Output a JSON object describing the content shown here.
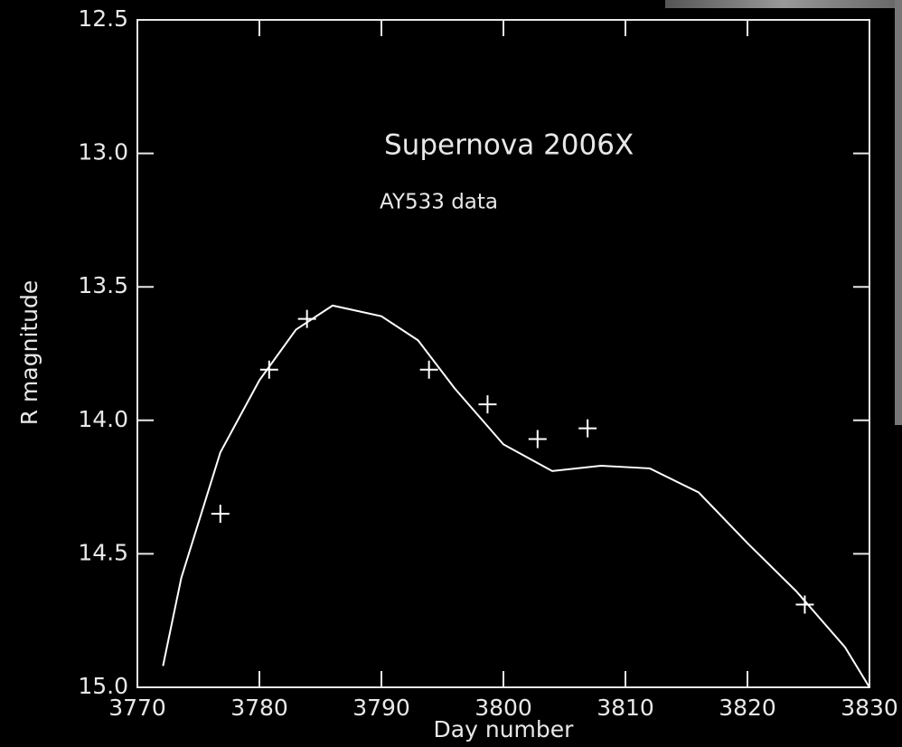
{
  "chart_data": {
    "type": "scatter",
    "title": "Supernova 2006X",
    "subtitle": "AY533 data",
    "x_label": "Day number",
    "y_label": "R magnitude",
    "color": "#ffffff",
    "x": [
      3776.8,
      3780.8,
      3783.9,
      3793.9,
      3798.7,
      3802.8,
      3806.9,
      3824.7
    ],
    "values": [
      14.35,
      13.81,
      13.62,
      13.81,
      13.94,
      14.07,
      14.03,
      14.69
    ],
    "fit": {
      "x": [
        3772.1,
        3773.6,
        3776.8,
        3780,
        3783,
        3786,
        3790,
        3793,
        3796,
        3800,
        3804,
        3808,
        3812,
        3816,
        3820,
        3824,
        3828,
        3830
      ],
      "values": [
        14.92,
        14.59,
        14.12,
        13.85,
        13.66,
        13.57,
        13.61,
        13.7,
        13.88,
        14.09,
        14.19,
        14.17,
        14.18,
        14.27,
        14.46,
        14.64,
        14.85,
        15.0
      ]
    },
    "xlim": [
      3770,
      3830
    ],
    "xticks": [
      3770,
      3780,
      3790,
      3800,
      3810,
      3820,
      3830
    ],
    "ylim": [
      15.0,
      12.5
    ],
    "yticks": [
      12.5,
      {
        "value": 13,
        "label": "13.0"
      },
      13.5,
      {
        "value": 14,
        "label": "14.0"
      },
      14.5,
      {
        "value": 15,
        "label": "15.0"
      }
    ]
  }
}
